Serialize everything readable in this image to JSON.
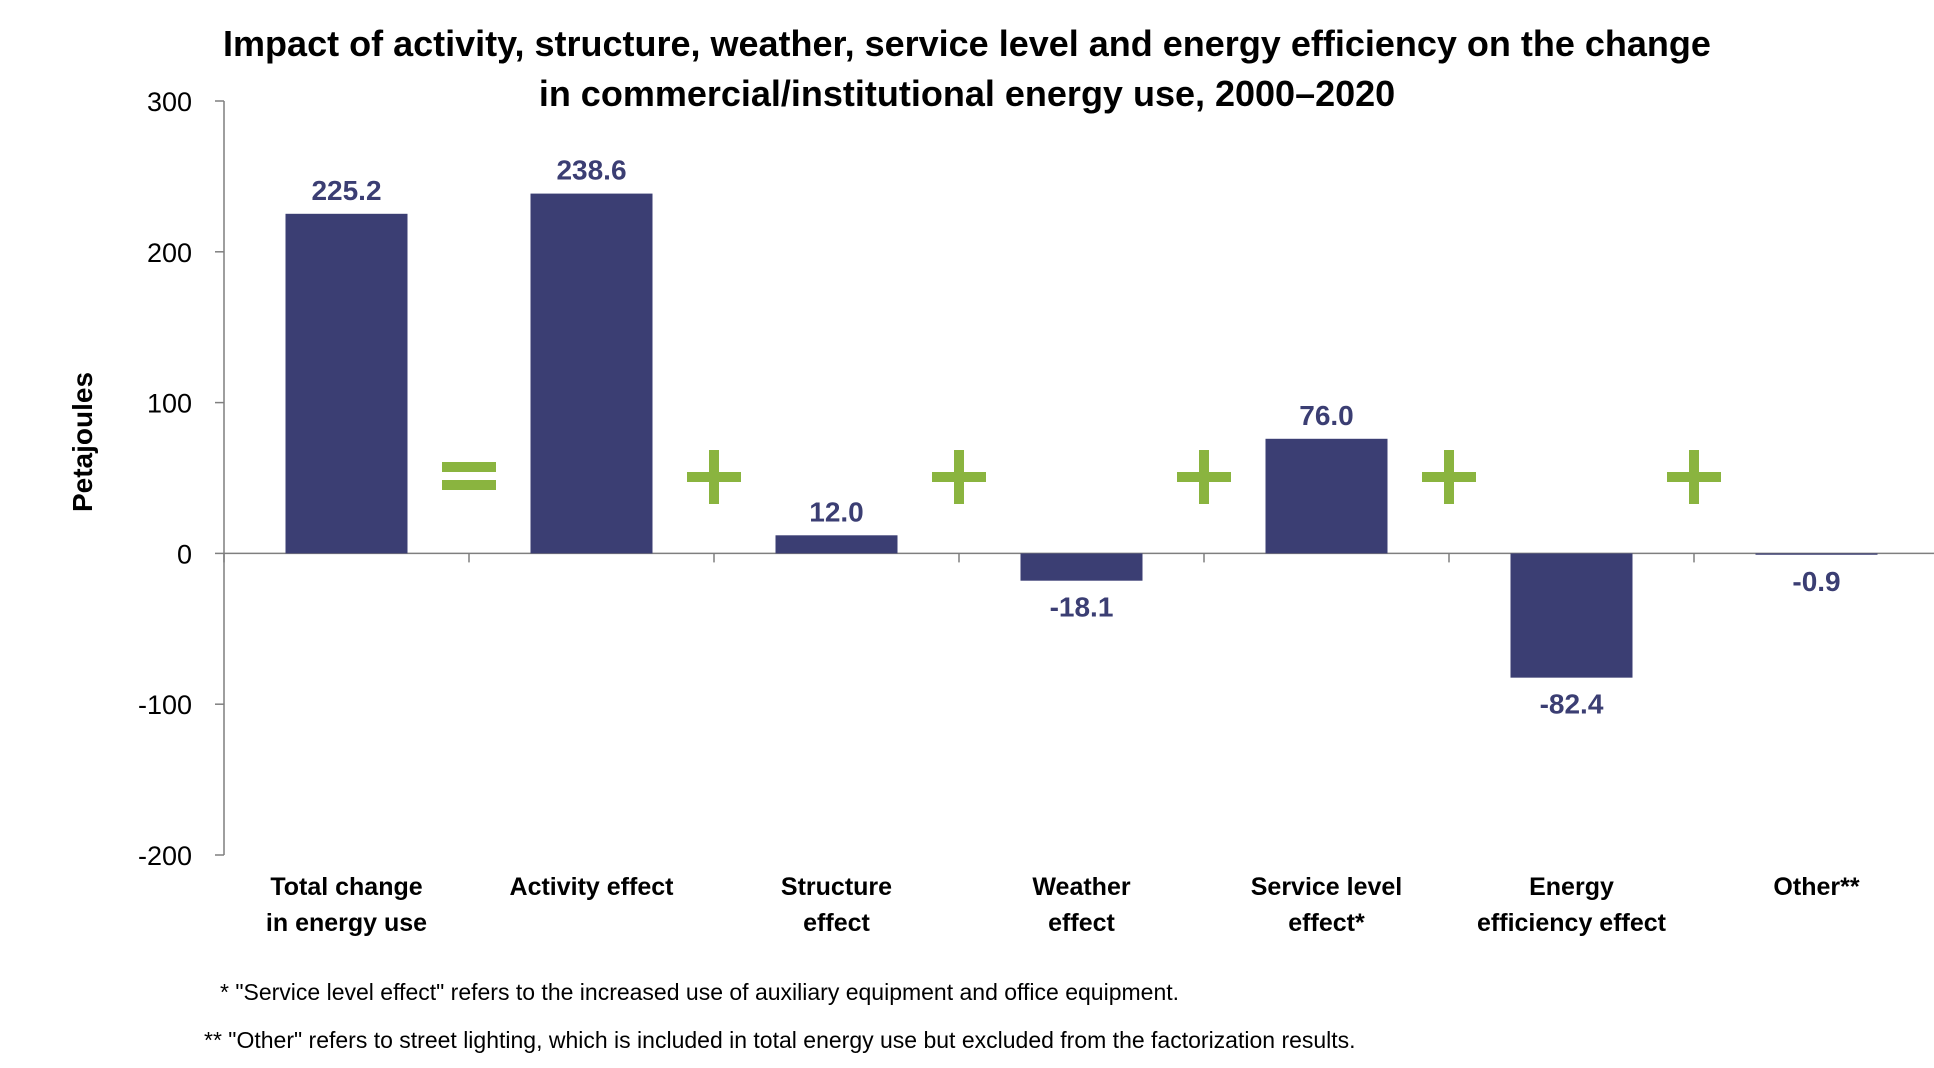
{
  "chart_data": {
    "type": "bar",
    "title_lines": [
      "Impact of activity, structure, weather, service level and energy efficiency on the change",
      "in commercial/institutional energy use, 2000–2020"
    ],
    "ylabel": "Petajoules",
    "xlabel": "",
    "ylim": [
      -200,
      300
    ],
    "yticks": [
      300,
      200,
      100,
      0,
      -100,
      -200
    ],
    "categories": [
      [
        "Total change",
        "in energy use"
      ],
      [
        "Activity effect"
      ],
      [
        "Structure",
        "effect"
      ],
      [
        "Weather",
        "effect"
      ],
      [
        "Service level",
        "effect*"
      ],
      [
        "Energy",
        "efficiency effect"
      ],
      [
        "Other**"
      ]
    ],
    "values": [
      225.2,
      238.6,
      12.0,
      -18.1,
      76.0,
      -82.4,
      -0.9
    ],
    "data_labels": [
      "225.2",
      "238.6",
      "12.0",
      "-18.1",
      "76.0",
      "-82.4",
      "-0.9"
    ],
    "operators": [
      "=",
      "+",
      "+",
      "+",
      "+",
      "+"
    ],
    "grid": false,
    "legend": "none",
    "footnotes": [
      "* \"Service level effect\" refers to the increased use of auxiliary equipment and office equipment.",
      "** \"Other\" refers to street lighting, which is included in total energy use but excluded from the factorization results."
    ],
    "colors": {
      "bar": "#3b3e73",
      "data_label": "#3b3e73",
      "operator": "#8ab43f",
      "axis": "#7f7f7f",
      "text": "#000000"
    }
  }
}
